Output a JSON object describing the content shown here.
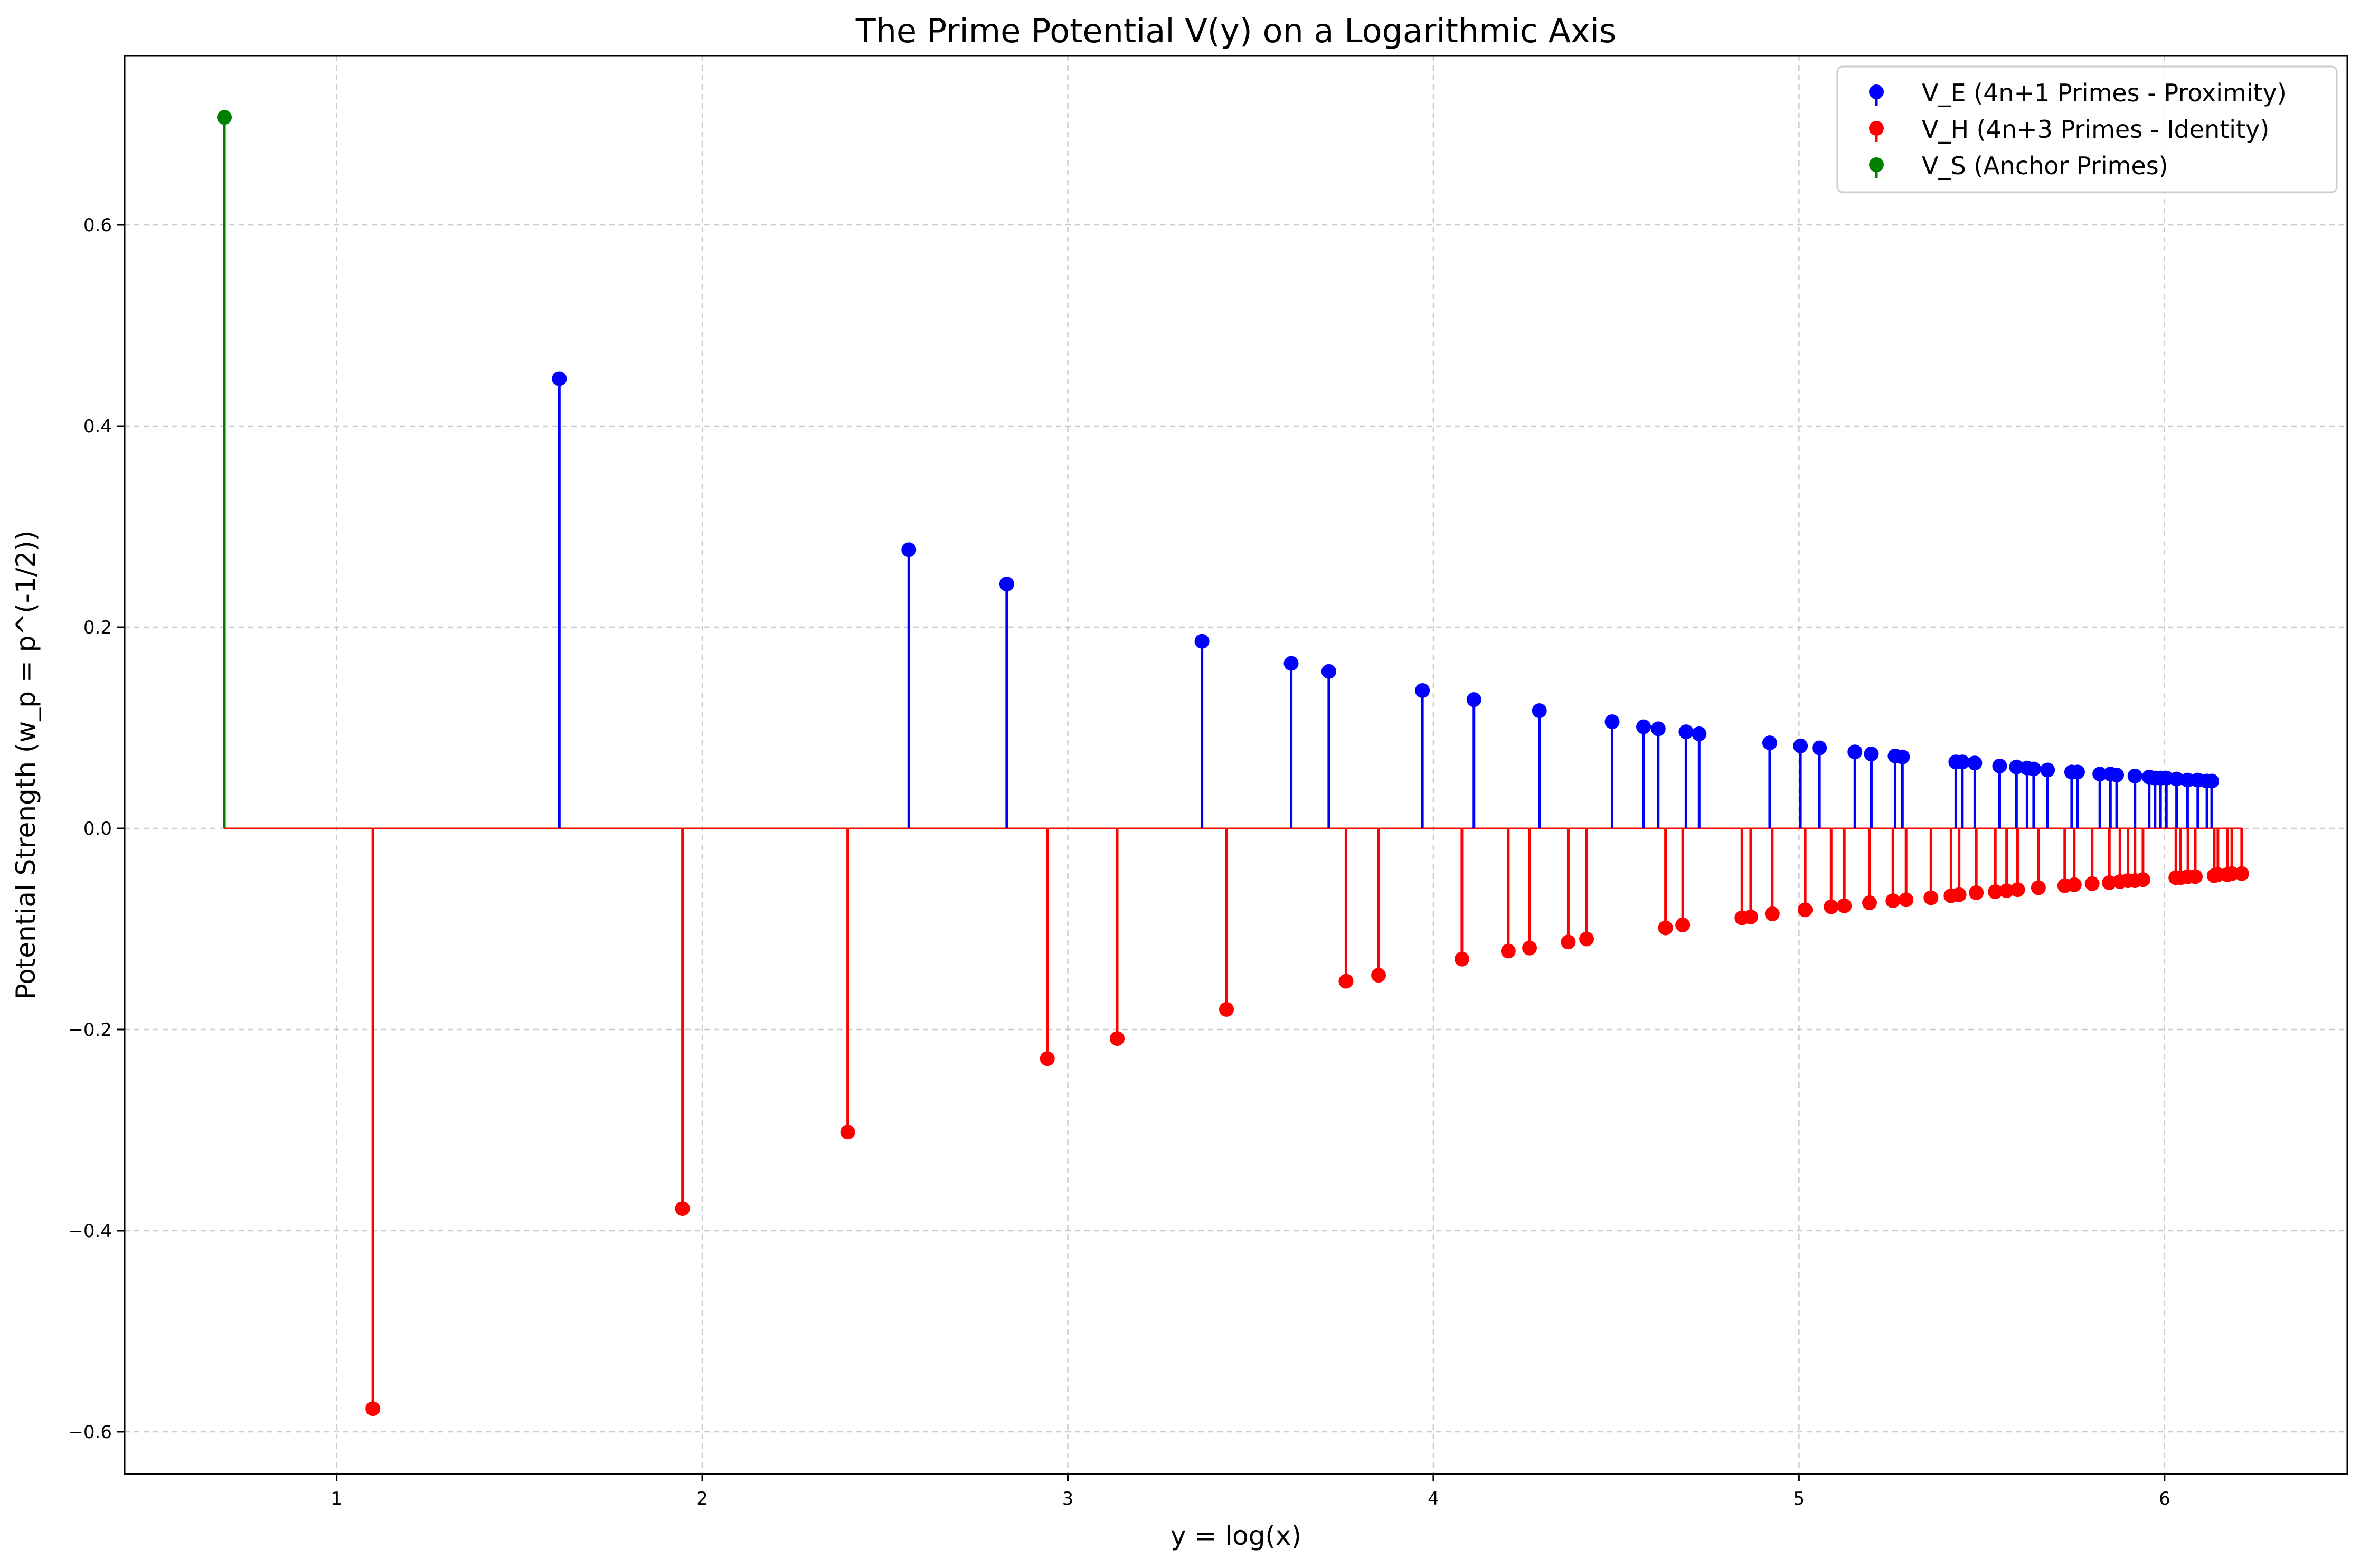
{
  "chart_data": {
    "type": "stem",
    "title": "The Prime Potential V(y) on a Logarithmic Axis",
    "xlabel": "y = log(x)",
    "ylabel": "Potential Strength (w_p = p^(-1/2))",
    "xlim": [
      0.42,
      6.5
    ],
    "ylim": [
      -0.642,
      0.768
    ],
    "xticks": [
      1,
      2,
      3,
      4,
      5,
      6
    ],
    "yticks": [
      -0.6,
      -0.4,
      -0.2,
      0.0,
      0.2,
      0.4,
      0.6
    ],
    "ytick_labels": [
      "−0.6",
      "−0.4",
      "−0.2",
      "0.0",
      "0.2",
      "0.4",
      "0.6"
    ],
    "grid": true,
    "legend_position": "top-right",
    "series": [
      {
        "name": "V_E (4n+1 Primes - Proximity)",
        "color": "#0000ff",
        "x": [
          1.609,
          2.565,
          2.833,
          3.367,
          3.611,
          3.714,
          3.97,
          4.111,
          4.29,
          4.489,
          4.575,
          4.615,
          4.691,
          4.727,
          4.92,
          5.004,
          5.056,
          5.153,
          5.198,
          5.263,
          5.283,
          5.429,
          5.447,
          5.481,
          5.549,
          5.595,
          5.624,
          5.642,
          5.68,
          5.746,
          5.762,
          5.823,
          5.852,
          5.869,
          5.919,
          5.958,
          5.974,
          5.989,
          6.005,
          6.033,
          6.063,
          6.091,
          6.116,
          6.129
        ],
        "y": [
          0.447,
          0.277,
          0.243,
          0.186,
          0.164,
          0.156,
          0.137,
          0.128,
          0.117,
          0.106,
          0.101,
          0.099,
          0.096,
          0.094,
          0.085,
          0.082,
          0.08,
          0.076,
          0.074,
          0.072,
          0.071,
          0.066,
          0.066,
          0.065,
          0.062,
          0.061,
          0.06,
          0.059,
          0.058,
          0.056,
          0.056,
          0.054,
          0.054,
          0.053,
          0.052,
          0.051,
          0.05,
          0.05,
          0.05,
          0.049,
          0.048,
          0.048,
          0.047,
          0.047
        ]
      },
      {
        "name": "V_H (4n+3 Primes - Identity)",
        "color": "#ff0000",
        "x": [
          1.099,
          1.946,
          2.398,
          2.944,
          3.135,
          3.434,
          3.761,
          3.85,
          4.078,
          4.205,
          4.263,
          4.369,
          4.419,
          4.635,
          4.682,
          4.844,
          4.868,
          4.927,
          5.017,
          5.088,
          5.124,
          5.193,
          5.257,
          5.293,
          5.361,
          5.416,
          5.438,
          5.485,
          5.537,
          5.568,
          5.598,
          5.655,
          5.727,
          5.753,
          5.802,
          5.849,
          5.878,
          5.9,
          5.919,
          5.941,
          6.031,
          6.044,
          6.064,
          6.084,
          6.136,
          6.146,
          6.172,
          6.184,
          6.211
        ],
        "y": [
          -0.577,
          -0.378,
          -0.302,
          -0.229,
          -0.209,
          -0.18,
          -0.152,
          -0.146,
          -0.13,
          -0.122,
          -0.119,
          -0.113,
          -0.11,
          -0.099,
          -0.096,
          -0.089,
          -0.088,
          -0.085,
          -0.081,
          -0.078,
          -0.077,
          -0.074,
          -0.072,
          -0.071,
          -0.069,
          -0.067,
          -0.066,
          -0.064,
          -0.063,
          -0.062,
          -0.061,
          -0.059,
          -0.057,
          -0.056,
          -0.055,
          -0.054,
          -0.053,
          -0.052,
          -0.052,
          -0.051,
          -0.049,
          -0.049,
          -0.048,
          -0.048,
          -0.047,
          -0.046,
          -0.046,
          -0.045,
          -0.045
        ]
      },
      {
        "name": "V_S (Anchor Primes)",
        "color": "#008000",
        "x": [
          0.693
        ],
        "y": [
          0.707
        ]
      }
    ]
  }
}
